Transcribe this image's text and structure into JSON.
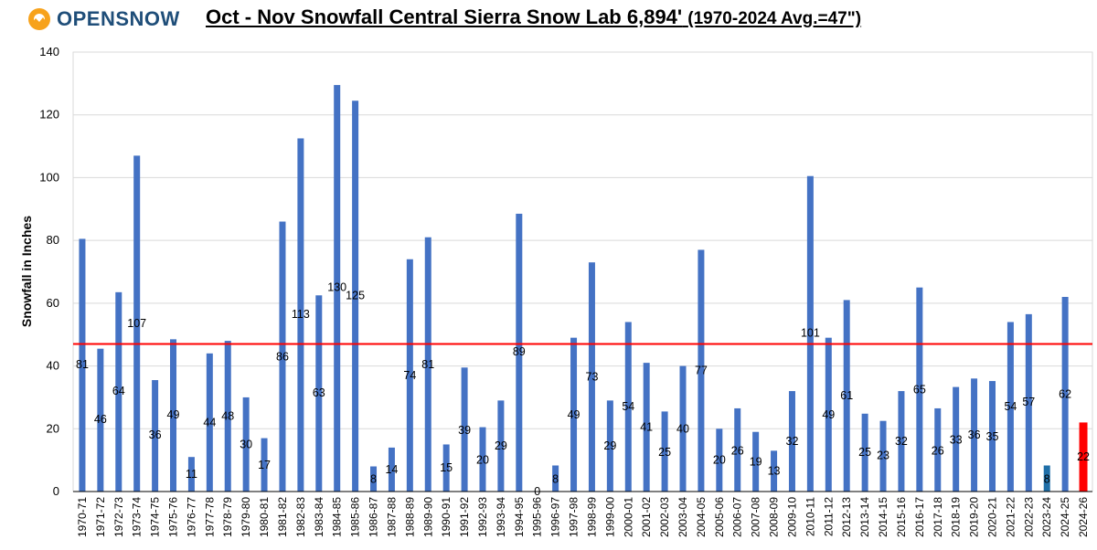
{
  "logo": {
    "text": "OPENSNOW"
  },
  "chart_data": {
    "type": "bar",
    "title": "Oct - Nov Snowfall Central Sierra Snow Lab 6,894'",
    "subtitle": "(1970-2024 Avg.=47\")",
    "xlabel": "",
    "ylabel": "Snowfall in Inches",
    "ylim": [
      0,
      140
    ],
    "yticks": [
      0,
      20,
      40,
      60,
      80,
      100,
      120,
      140
    ],
    "average_line": 47,
    "colors": {
      "default": "#4472c4",
      "highlight_2023": "#1f6fa8",
      "current": "#ff0000",
      "average": "#ff0000"
    },
    "categories": [
      "1970-71",
      "1971-72",
      "1972-73",
      "1973-74",
      "1974-75",
      "1975-76",
      "1976-77",
      "1977-78",
      "1978-79",
      "1979-80",
      "1980-81",
      "1981-82",
      "1982-83",
      "1983-84",
      "1984-85",
      "1985-86",
      "1986-87",
      "1987-88",
      "1988-89",
      "1989-90",
      "1990-91",
      "1991-92",
      "1992-93",
      "1993-94",
      "1994-95",
      "1995-96",
      "1996-97",
      "1997-98",
      "1998-99",
      "1999-00",
      "2000-01",
      "2001-02",
      "2002-03",
      "2003-04",
      "2004-05",
      "2005-06",
      "2006-07",
      "2007-08",
      "2008-09",
      "2009-10",
      "2010-11",
      "2011-12",
      "2012-13",
      "2013-14",
      "2014-15",
      "2015-16",
      "2016-17",
      "2017-18",
      "2018-19",
      "2019-20",
      "2020-21",
      "2021-22",
      "2022-23",
      "2023-24",
      "2024-25",
      "2024-26"
    ],
    "values": [
      80.5,
      45.5,
      63.5,
      107,
      35.5,
      48.5,
      11,
      44,
      48,
      30,
      17,
      86,
      112.5,
      62.5,
      129.5,
      124.5,
      8,
      14,
      74,
      81,
      15,
      39.5,
      20.5,
      29,
      88.5,
      0,
      8.3,
      49,
      73,
      29,
      54,
      41,
      25.5,
      40,
      77,
      20,
      26.5,
      19,
      13,
      32,
      100.5,
      49,
      61,
      24.8,
      22.5,
      32,
      65,
      26.5,
      33.3,
      36,
      35.2,
      54,
      56.5,
      8.3,
      62,
      22
    ],
    "labels": [
      "81",
      "46",
      "64",
      "107",
      "36",
      "49",
      "11",
      "44",
      "48",
      "30",
      "17",
      "86",
      "113",
      "63",
      "130",
      "125",
      "8",
      "14",
      "74",
      "81",
      "15",
      "39",
      "20",
      "29",
      "89",
      "0",
      "8",
      "49",
      "73",
      "29",
      "54",
      "41",
      "25",
      "40",
      "77",
      "20",
      "26",
      "19",
      "13",
      "32",
      "101",
      "49",
      "61",
      "25",
      "23",
      "32",
      "65",
      "26",
      "33",
      "36",
      "35",
      "54",
      "57",
      "8",
      "62",
      "22"
    ]
  }
}
